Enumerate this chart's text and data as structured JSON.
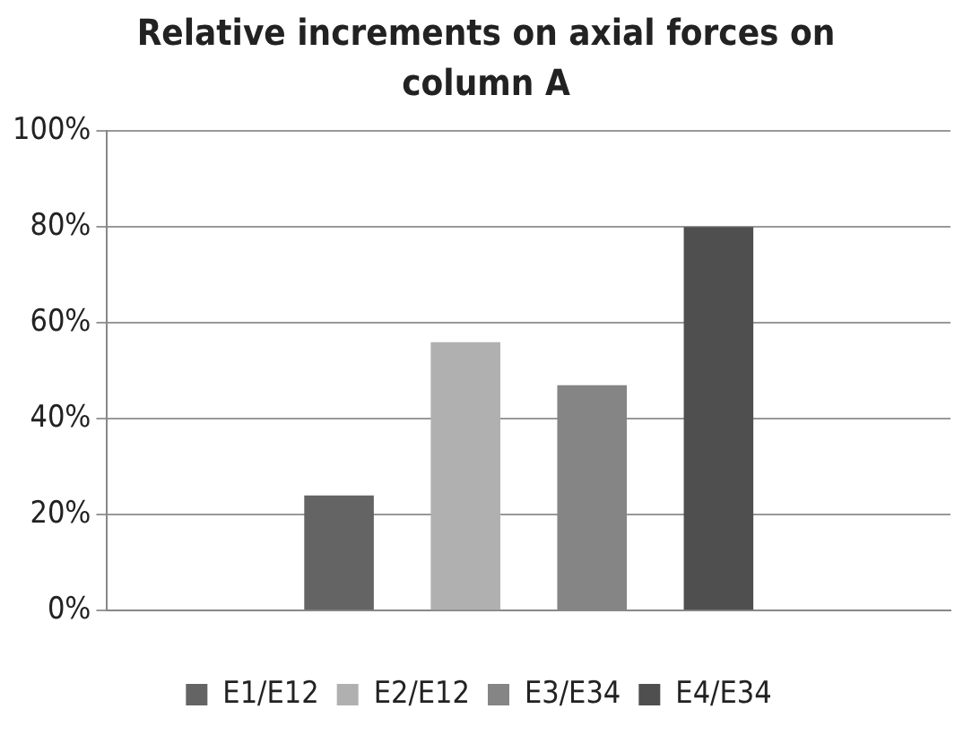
{
  "chart_data": {
    "type": "bar",
    "title": "Relative increments on axial forces on column A",
    "categories": [
      null
    ],
    "series": [
      {
        "name": "E1/E12",
        "color": "#646464",
        "values": [
          24
        ]
      },
      {
        "name": "E2/E12",
        "color": "#b0b0b0",
        "values": [
          56
        ]
      },
      {
        "name": "E3/E34",
        "color": "#858585",
        "values": [
          47
        ]
      },
      {
        "name": "E4/E34",
        "color": "#4f4f4f",
        "values": [
          80
        ]
      }
    ],
    "ylim": [
      0,
      100
    ],
    "yticks": [
      {
        "value": 0,
        "label": "0%"
      },
      {
        "value": 20,
        "label": "20%"
      },
      {
        "value": 40,
        "label": "40%"
      },
      {
        "value": 60,
        "label": "60%"
      },
      {
        "value": 80,
        "label": "80%"
      },
      {
        "value": 100,
        "label": "100%"
      }
    ],
    "grid": "y",
    "legend": "bottom"
  }
}
